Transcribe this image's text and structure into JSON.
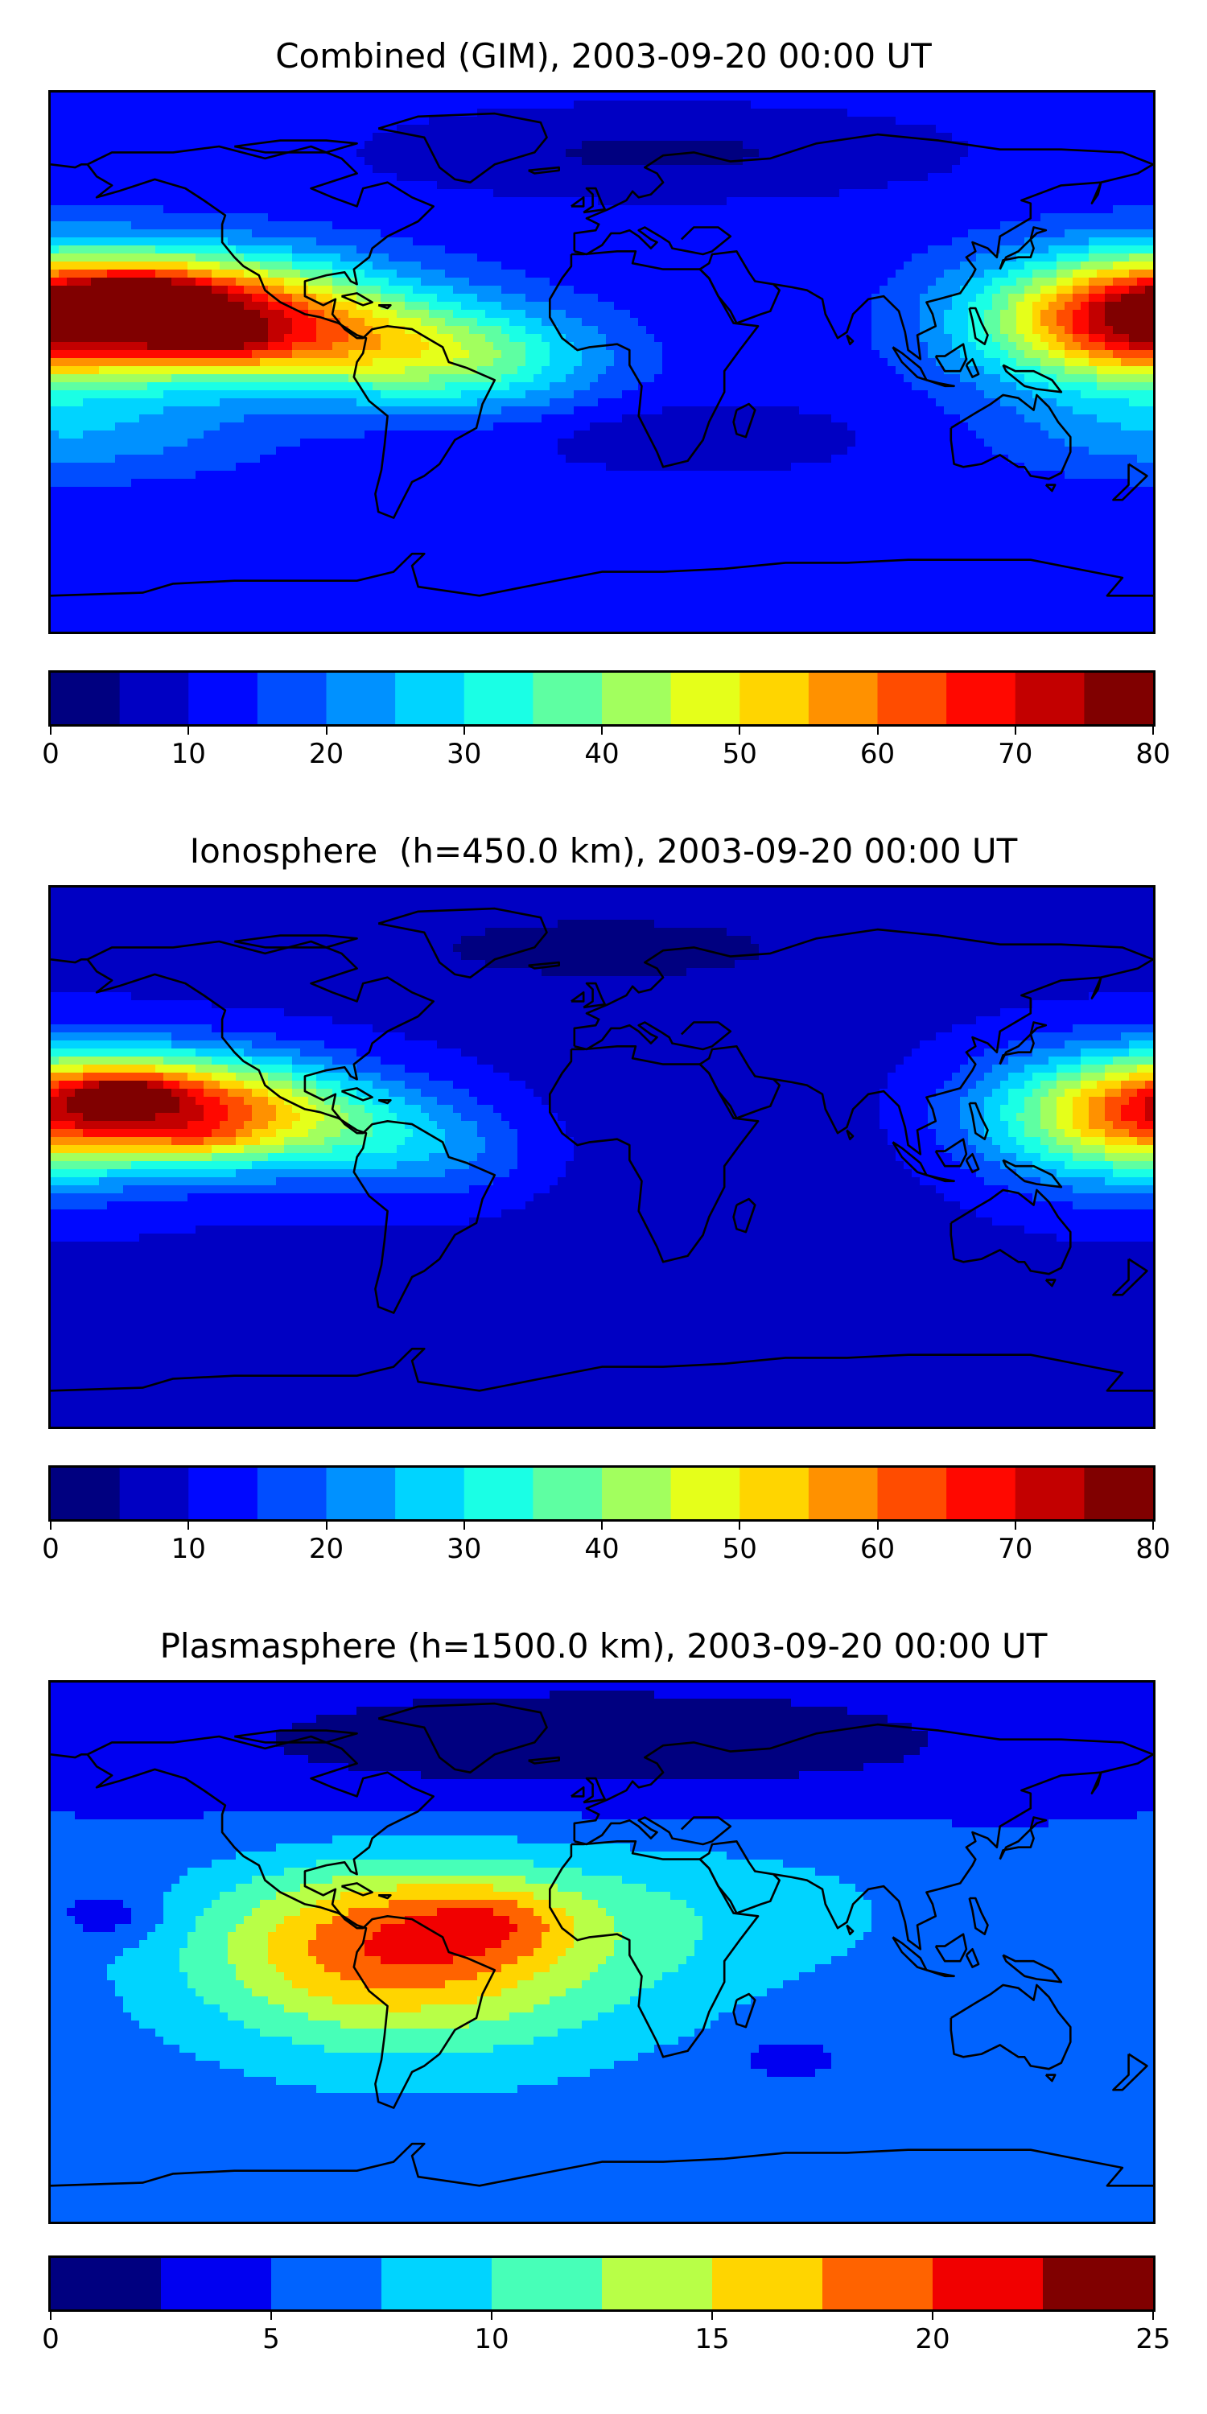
{
  "chart_data": [
    {
      "type": "heatmap",
      "title": "Combined (GIM), 2003-09-20 00:00 UT",
      "colorbar": {
        "ticks": [
          "0",
          "10",
          "20",
          "30",
          "40",
          "50",
          "60",
          "70",
          "80"
        ],
        "levels": [
          0,
          5,
          10,
          15,
          20,
          25,
          30,
          35,
          40,
          45,
          50,
          55,
          60,
          65,
          70,
          75,
          80
        ]
      },
      "background_level": 12,
      "blobs": [
        {
          "lon": -140,
          "lat": 18,
          "value": 55,
          "rlon": 45,
          "rlat": 13
        },
        {
          "lon": -150,
          "lat": 22,
          "value": 17,
          "rlon": 14,
          "rlat": 5
        },
        {
          "lon": -125,
          "lat": 6,
          "value": 10,
          "rlon": 14,
          "rlat": 4
        },
        {
          "lon": -90,
          "lat": 5,
          "value": 25,
          "rlon": 40,
          "rlat": 12
        },
        {
          "lon": -40,
          "lat": 0,
          "value": 18,
          "rlon": 30,
          "rlat": 12
        },
        {
          "lon": 170,
          "lat": 12,
          "value": 40,
          "rlon": 35,
          "rlat": 16
        },
        {
          "lon": -170,
          "lat": -25,
          "value": 10,
          "rlon": 40,
          "rlat": 10
        },
        {
          "lon": 30,
          "lat": -25,
          "value": -6,
          "rlon": 40,
          "rlat": 8
        },
        {
          "lon": 20,
          "lat": 70,
          "value": -8,
          "rlon": 60,
          "rlat": 10
        }
      ]
    },
    {
      "type": "heatmap",
      "title": "Ionosphere  (h=450.0 km), 2003-09-20 00:00 UT",
      "colorbar": {
        "ticks": [
          "0",
          "10",
          "20",
          "30",
          "40",
          "50",
          "60",
          "70",
          "80"
        ],
        "levels": [
          0,
          5,
          10,
          15,
          20,
          25,
          30,
          35,
          40,
          45,
          50,
          55,
          60,
          65,
          70,
          75,
          80
        ]
      },
      "background_level": 9,
      "blobs": [
        {
          "lon": -145,
          "lat": 18,
          "value": 48,
          "rlon": 40,
          "rlat": 12
        },
        {
          "lon": -155,
          "lat": 22,
          "value": 14,
          "rlon": 12,
          "rlat": 4
        },
        {
          "lon": -130,
          "lat": 6,
          "value": 8,
          "rlon": 12,
          "rlat": 4
        },
        {
          "lon": -95,
          "lat": 8,
          "value": 18,
          "rlon": 35,
          "rlat": 12
        },
        {
          "lon": -50,
          "lat": 0,
          "value": 8,
          "rlon": 25,
          "rlat": 12
        },
        {
          "lon": 170,
          "lat": 12,
          "value": 32,
          "rlon": 35,
          "rlat": 16
        },
        {
          "lon": 40,
          "lat": 0,
          "value": -3,
          "rlon": 60,
          "rlat": 30
        },
        {
          "lon": 0,
          "lat": 70,
          "value": -5,
          "rlon": 70,
          "rlat": 12
        }
      ]
    },
    {
      "type": "heatmap",
      "title": "Plasmasphere (h=1500.0 km), 2003-09-20 00:00 UT",
      "colorbar": {
        "ticks": [
          "0",
          "5",
          "10",
          "15",
          "20",
          "25"
        ],
        "levels": [
          0,
          2.5,
          5,
          7.5,
          10,
          12.5,
          15,
          17.5,
          20,
          22.5,
          25
        ]
      },
      "background_level": 5.5,
      "blobs": [
        {
          "lon": -70,
          "lat": 5,
          "value": 9,
          "rlon": 40,
          "rlat": 18
        },
        {
          "lon": -60,
          "lat": -10,
          "value": 6,
          "rlon": 60,
          "rlat": 25
        },
        {
          "lon": -35,
          "lat": 10,
          "value": 4,
          "rlon": 18,
          "rlat": 8
        },
        {
          "lon": 30,
          "lat": 15,
          "value": 3,
          "rlon": 60,
          "rlat": 20
        },
        {
          "lon": 0,
          "lat": 70,
          "value": -4.5,
          "rlon": 120,
          "rlat": 18
        },
        {
          "lon": -160,
          "lat": 12,
          "value": -3,
          "rlon": 12,
          "rlat": 6
        },
        {
          "lon": 60,
          "lat": -35,
          "value": -3,
          "rlon": 10,
          "rlat": 4
        }
      ]
    }
  ]
}
